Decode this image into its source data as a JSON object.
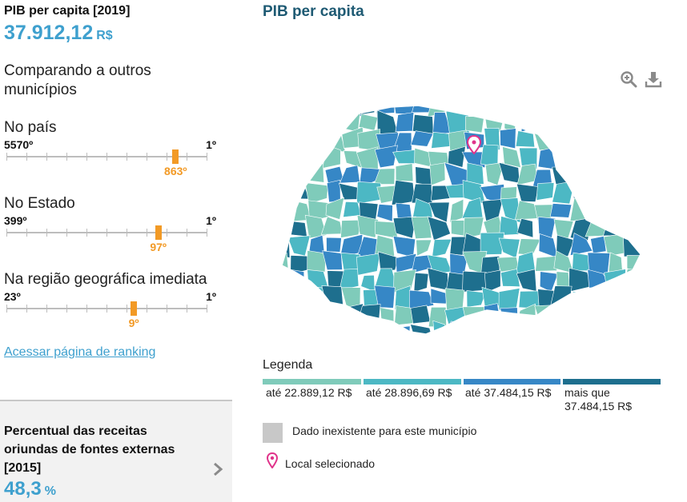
{
  "indicator": {
    "title": "PIB per capita [2019]",
    "value": "37.912,12",
    "unit": "R$"
  },
  "comparison_heading": "Comparando a outros municípios",
  "rankings": [
    {
      "label": "No país",
      "low": "5570º",
      "high": "1º",
      "position_label": "863º",
      "total": 5570,
      "position": 863
    },
    {
      "label": "No Estado",
      "low": "399º",
      "high": "1º",
      "position_label": "97º",
      "total": 399,
      "position": 97
    },
    {
      "label": "Na região geográfica imediata",
      "low": "23º",
      "high": "1º",
      "position_label": "9º",
      "total": 23,
      "position": 9
    }
  ],
  "ranking_link": "Acessar página de ranking",
  "next_card": {
    "title": "Percentual das receitas oriundas de fontes externas [2015]",
    "value": "48,3",
    "unit": "%"
  },
  "map": {
    "title": "PIB per capita",
    "tools": [
      "zoom-in-icon",
      "download-icon"
    ]
  },
  "legend": {
    "title": "Legenda",
    "classes": [
      {
        "label": "até 22.889,12 R$",
        "color": "#7fcbba"
      },
      {
        "label": "até 28.896,69 R$",
        "color": "#4cb8c4"
      },
      {
        "label": "até 37.484,15 R$",
        "color": "#3687c6"
      },
      {
        "label": "mais que 37.484,15 R$",
        "color": "#1e6f8e"
      }
    ],
    "no_data": {
      "label": "Dado inexistente para este município",
      "color": "#c8c8c8"
    },
    "selected": {
      "label": "Local selecionado",
      "color": "#e0338a"
    }
  }
}
